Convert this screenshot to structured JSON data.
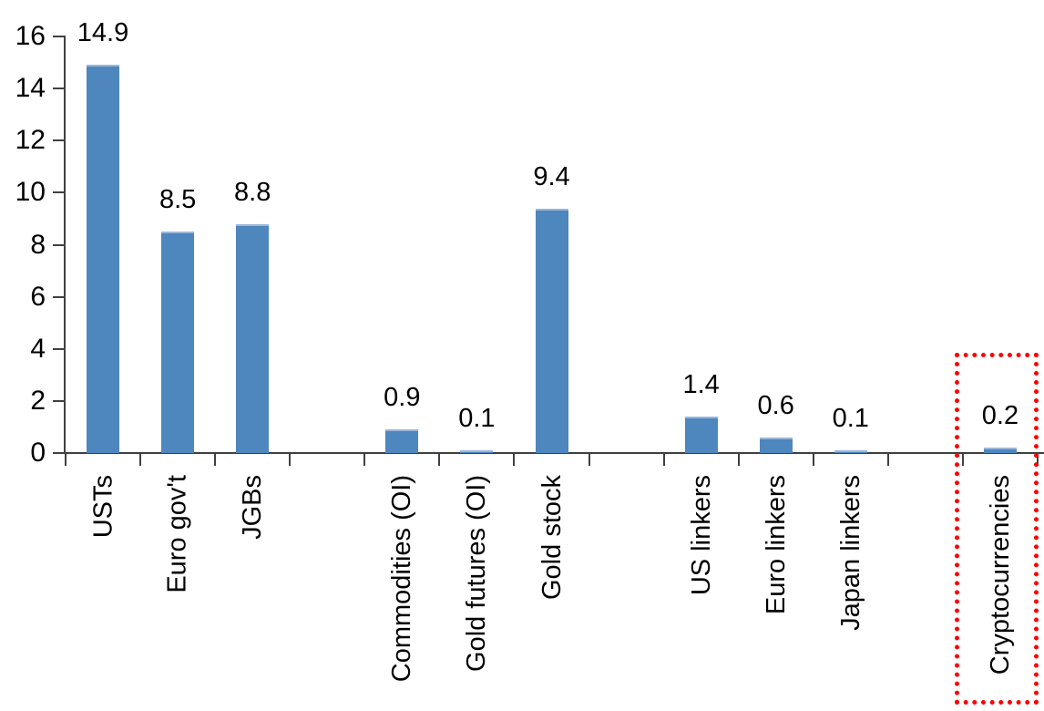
{
  "chart_data": {
    "type": "bar",
    "title": "",
    "xlabel": "",
    "ylabel": "",
    "ylim": [
      0,
      16
    ],
    "yticks": [
      0,
      2,
      4,
      6,
      8,
      10,
      12,
      14,
      16
    ],
    "grid": false,
    "legend": false,
    "data_labels_shown": true,
    "value_decimals": 1,
    "bar_color": "#4E86BE",
    "bar_top_edge_color": "#9AB6D8",
    "axis_color": "#404040",
    "text_color": "#000000",
    "groups": [
      {
        "categories": [
          "USTs",
          "Euro gov't",
          "JGBs"
        ],
        "values": [
          14.9,
          8.5,
          8.8
        ]
      },
      {
        "categories": [
          "Commodities (OI)",
          "Gold futures (OI)",
          "Gold stock"
        ],
        "values": [
          0.9,
          0.1,
          9.4
        ]
      },
      {
        "categories": [
          "US linkers",
          "Euro linkers",
          "Japan linkers"
        ],
        "values": [
          1.4,
          0.6,
          0.1
        ]
      },
      {
        "categories": [
          "Cryptocurrencies"
        ],
        "values": [
          0.2
        ]
      }
    ],
    "annotations": [
      {
        "type": "highlight-box",
        "target_category": "Cryptocurrencies",
        "line_style": "dotted",
        "color": "#FF0000"
      }
    ]
  }
}
